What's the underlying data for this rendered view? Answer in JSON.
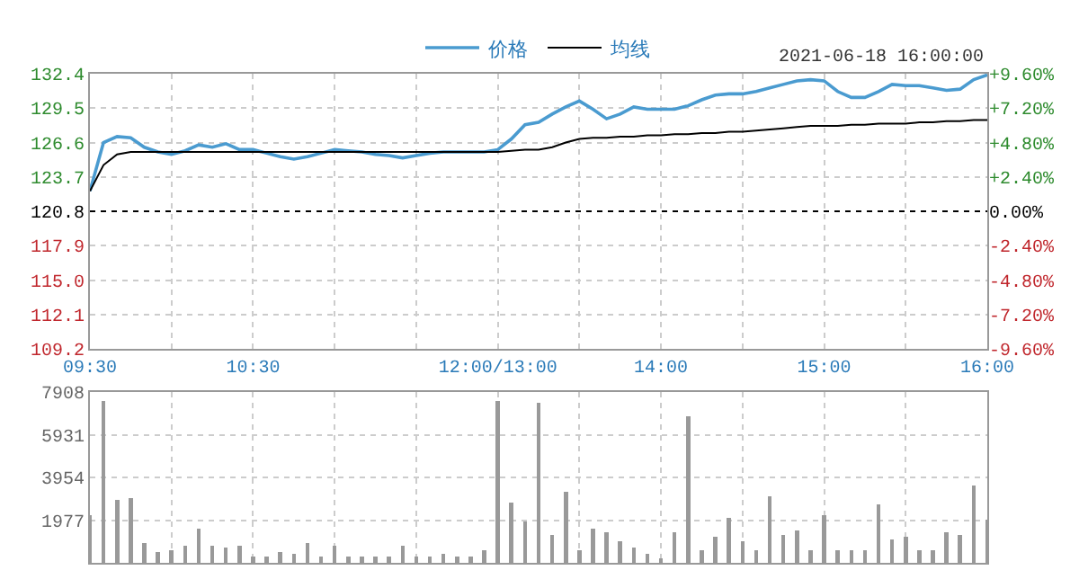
{
  "chart_data": [
    {
      "type": "line",
      "subtitle": "2021-06-18 16:00:00",
      "legend": "top",
      "grid": true,
      "categories": [
        "09:30",
        null,
        null,
        null,
        null,
        null,
        null,
        null,
        null,
        null,
        null,
        null,
        "10:30",
        null,
        null,
        null,
        null,
        null,
        null,
        null,
        null,
        null,
        null,
        null,
        null,
        null,
        null,
        null,
        null,
        null,
        "12:00/13:00",
        null,
        null,
        null,
        null,
        null,
        null,
        null,
        null,
        null,
        null,
        null,
        "14:00",
        null,
        null,
        null,
        null,
        null,
        null,
        null,
        null,
        null,
        null,
        null,
        "15:00",
        null,
        null,
        null,
        null,
        null,
        null,
        null,
        null,
        null,
        null,
        null,
        "16:00"
      ],
      "ylim": [
        109.2,
        132.4
      ],
      "yticks": [
        {
          "value": 109.2,
          "label": "109.2"
        },
        {
          "value": 112.1,
          "label": "112.1"
        },
        {
          "value": 115.0,
          "label": "115.0"
        },
        {
          "value": 117.9,
          "label": "117.9"
        },
        {
          "value": 120.8,
          "label": "120.8"
        },
        {
          "value": 123.7,
          "label": "123.7"
        },
        {
          "value": 126.6,
          "label": "126.6"
        },
        {
          "value": 129.5,
          "label": "129.5"
        },
        {
          "value": 132.4,
          "label": "132.4"
        }
      ],
      "y2lim": [
        -9.6,
        9.6
      ],
      "y2ticks": [
        {
          "value": -9.6,
          "label": "-9.60%"
        },
        {
          "value": -7.2,
          "label": "-7.20%"
        },
        {
          "value": -4.8,
          "label": "-4.80%"
        },
        {
          "value": -2.4,
          "label": "-2.40%"
        },
        {
          "value": 0,
          "label": "0.00%"
        },
        {
          "value": 2.4,
          "label": "+2.40%"
        },
        {
          "value": 4.8,
          "label": "+4.80%"
        },
        {
          "value": 7.2,
          "label": "+7.20%"
        },
        {
          "value": 9.6,
          "label": "+9.60%"
        }
      ],
      "ref_lines": [
        {
          "axis": "y",
          "value": 120.8,
          "line_style": "dotted",
          "color": "#000000"
        }
      ],
      "series": [
        {
          "name": "价格",
          "color": "#4a9bd0",
          "values": [
            122.5,
            126.6,
            127.1,
            127.0,
            126.2,
            125.8,
            125.6,
            125.9,
            126.4,
            126.2,
            126.5,
            126.0,
            126.0,
            125.7,
            125.4,
            125.2,
            125.4,
            125.7,
            126.0,
            125.9,
            125.8,
            125.6,
            125.5,
            125.3,
            125.5,
            125.7,
            125.8,
            125.8,
            125.8,
            125.8,
            126.0,
            126.9,
            128.1,
            128.3,
            129.0,
            129.6,
            130.1,
            129.4,
            128.6,
            129.0,
            129.6,
            129.4,
            129.4,
            129.4,
            129.7,
            130.2,
            130.6,
            130.7,
            130.7,
            130.9,
            131.2,
            131.5,
            131.8,
            131.9,
            131.8,
            130.9,
            130.4,
            130.4,
            130.9,
            131.5,
            131.4,
            131.4,
            131.2,
            131.0,
            131.1,
            131.9,
            132.3
          ]
        },
        {
          "name": "均线",
          "color": "#000000",
          "values": [
            122.5,
            124.7,
            125.6,
            125.8,
            125.8,
            125.8,
            125.8,
            125.8,
            125.8,
            125.8,
            125.8,
            125.8,
            125.8,
            125.8,
            125.8,
            125.8,
            125.8,
            125.8,
            125.8,
            125.8,
            125.8,
            125.8,
            125.8,
            125.8,
            125.8,
            125.8,
            125.8,
            125.8,
            125.8,
            125.8,
            125.8,
            125.9,
            126.0,
            126.0,
            126.2,
            126.6,
            126.9,
            127.0,
            127.0,
            127.1,
            127.1,
            127.2,
            127.2,
            127.3,
            127.3,
            127.4,
            127.4,
            127.5,
            127.5,
            127.6,
            127.7,
            127.8,
            127.9,
            128.0,
            128.0,
            128.0,
            128.1,
            128.1,
            128.2,
            128.2,
            128.2,
            128.3,
            128.3,
            128.4,
            128.4,
            128.5,
            128.5
          ]
        }
      ]
    },
    {
      "type": "bar",
      "grid": true,
      "tick_labels": "y",
      "categories": [
        null,
        null,
        null,
        null,
        null,
        null,
        null,
        null,
        null,
        null,
        null,
        null,
        null,
        null,
        null,
        null,
        null,
        null,
        null,
        null,
        null,
        null,
        null,
        null,
        null,
        null,
        null,
        null,
        null,
        null,
        null,
        null,
        null,
        null,
        null,
        null,
        null,
        null,
        null,
        null,
        null,
        null,
        null,
        null,
        null,
        null,
        null,
        null,
        null,
        null,
        null,
        null,
        null,
        null,
        null,
        null,
        null,
        null,
        null,
        null,
        null,
        null,
        null,
        null,
        null,
        null,
        null
      ],
      "ylim": [
        0,
        7908
      ],
      "yticks": [
        1977,
        3954,
        5931,
        7908
      ],
      "series": [
        {
          "color": "#999999",
          "values": [
            2200,
            7500,
            2900,
            3000,
            900,
            500,
            600,
            800,
            1600,
            800,
            700,
            800,
            300,
            300,
            500,
            400,
            900,
            300,
            800,
            300,
            300,
            300,
            300,
            800,
            300,
            300,
            400,
            300,
            300,
            600,
            7500,
            2800,
            1900,
            7400,
            1300,
            3300,
            600,
            1600,
            1400,
            1000,
            700,
            400,
            200,
            1400,
            6800,
            600,
            1200,
            2100,
            1000,
            600,
            3100,
            1300,
            1500,
            600,
            2200,
            600,
            600,
            600,
            2700,
            1100,
            1200,
            600,
            600,
            1400,
            1300,
            3600,
            2000
          ]
        }
      ]
    }
  ]
}
